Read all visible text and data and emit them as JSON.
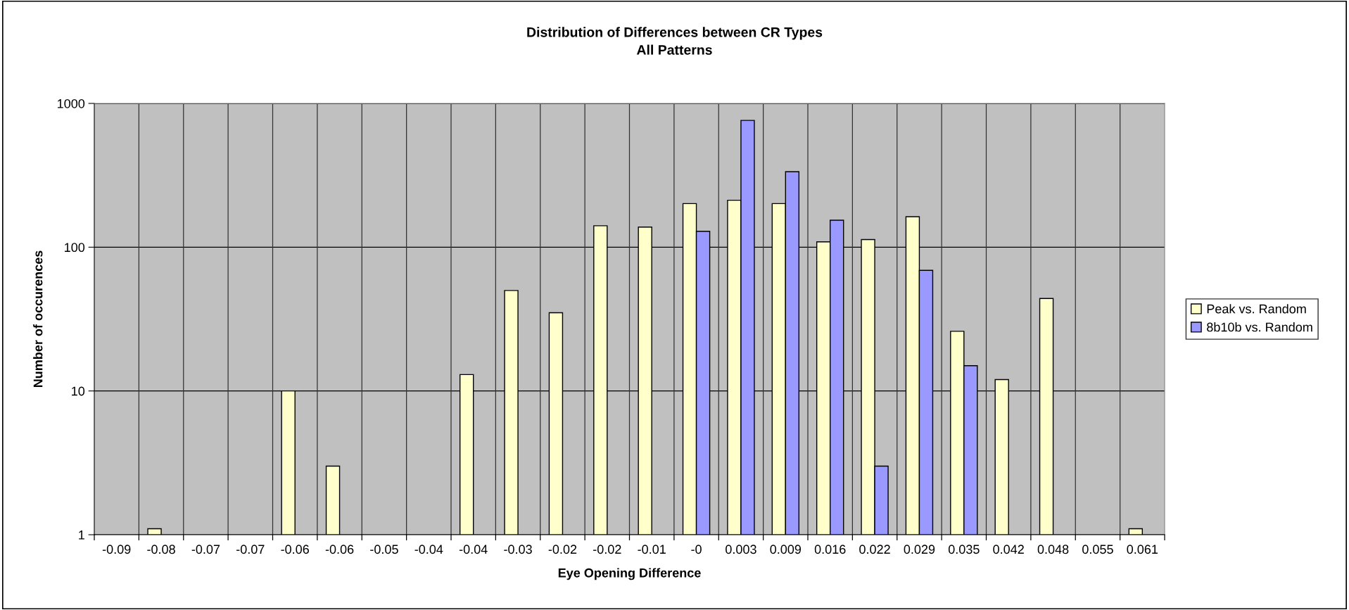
{
  "chart_data": {
    "type": "bar",
    "title": "Distribution of Differences between CR Types\nAll Patterns",
    "xlabel": "Eye Opening Difference",
    "ylabel": "Number of occurences",
    "categories": [
      "-0.09",
      "-0.08",
      "-0.07",
      "-0.07",
      "-0.06",
      "-0.06",
      "-0.05",
      "-0.04",
      "-0.04",
      "-0.03",
      "-0.02",
      "-0.02",
      "-0.01",
      "-0",
      "0.003",
      "0.009",
      "0.016",
      "0.022",
      "0.029",
      "0.035",
      "0.042",
      "0.048",
      "0.055",
      "0.061"
    ],
    "series": [
      {
        "name": "Peak vs. Random",
        "color": "#ffffcc",
        "values": [
          null,
          1.1,
          null,
          null,
          10,
          3,
          null,
          null,
          13,
          50,
          35,
          141,
          138,
          201,
          212,
          201,
          109,
          113,
          163,
          26,
          12,
          44,
          null,
          1.1
        ]
      },
      {
        "name": "8b10b vs. Random",
        "color": "#9999ff",
        "values": [
          null,
          null,
          null,
          null,
          null,
          null,
          null,
          null,
          null,
          null,
          null,
          null,
          null,
          129,
          762,
          335,
          154,
          3,
          69,
          15,
          null,
          null,
          null,
          null
        ]
      }
    ],
    "log": "y",
    "ylim": [
      1,
      1000
    ],
    "yticks": [
      1,
      10,
      100,
      1000
    ],
    "grid": true,
    "legend": "right"
  }
}
